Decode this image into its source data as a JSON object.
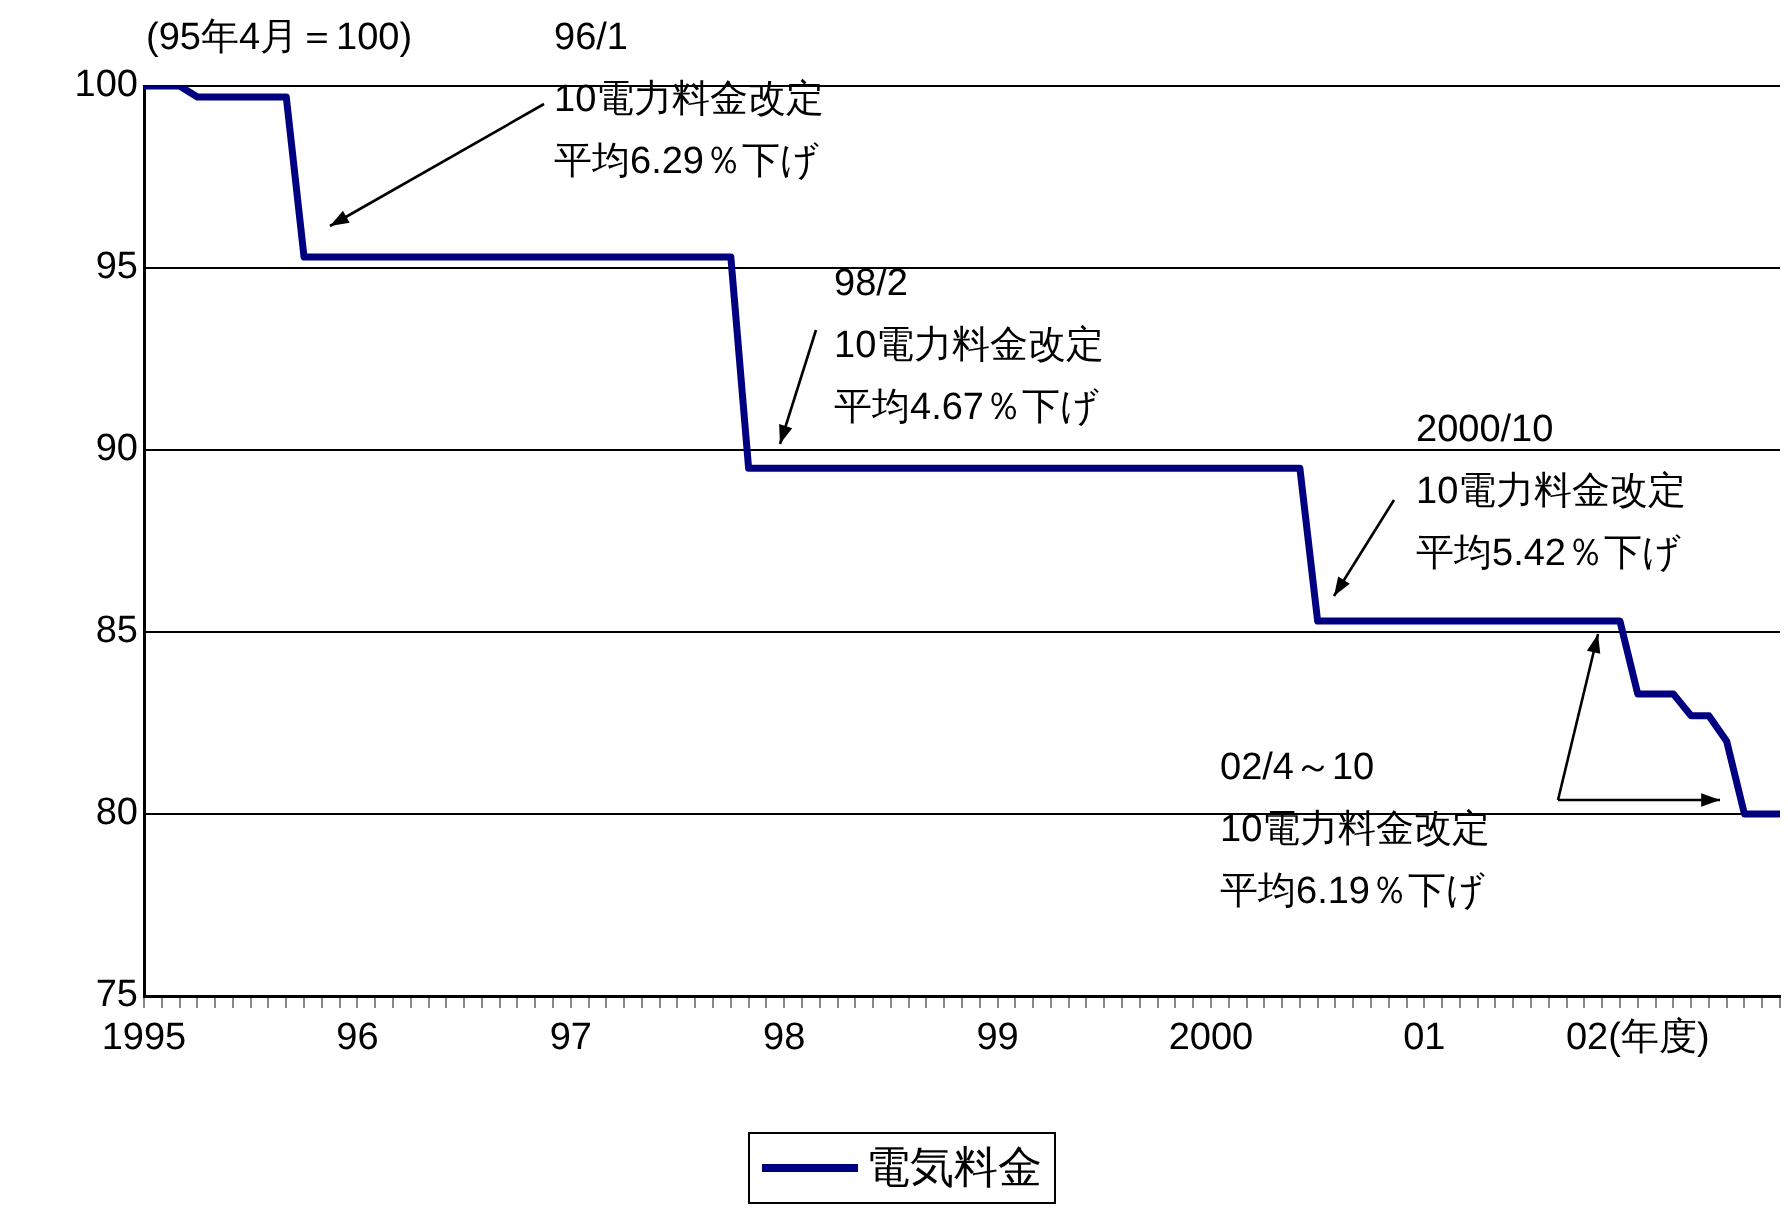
{
  "chart_data": {
    "type": "line",
    "categories": [
      "1995",
      null,
      null,
      null,
      null,
      null,
      null,
      null,
      null,
      null,
      null,
      null,
      "96",
      null,
      null,
      null,
      null,
      null,
      null,
      null,
      null,
      null,
      null,
      null,
      "97",
      null,
      null,
      null,
      null,
      null,
      null,
      null,
      null,
      null,
      null,
      null,
      "98",
      null,
      null,
      null,
      null,
      null,
      null,
      null,
      null,
      null,
      null,
      null,
      "99",
      null,
      null,
      null,
      null,
      null,
      null,
      null,
      null,
      null,
      null,
      null,
      "2000",
      null,
      null,
      null,
      null,
      null,
      null,
      null,
      null,
      null,
      null,
      null,
      "01",
      null,
      null,
      null,
      null,
      null,
      null,
      null,
      null,
      null,
      null,
      null,
      "02(年度)",
      null,
      null,
      null,
      null,
      null,
      null,
      null,
      null
    ],
    "series": [
      {
        "name": "電気料金",
        "color": "#000080",
        "values": [
          100,
          100,
          100,
          99.7,
          99.7,
          99.7,
          99.7,
          99.7,
          99.7,
          95.3,
          95.3,
          95.3,
          95.3,
          95.3,
          95.3,
          95.3,
          95.3,
          95.3,
          95.3,
          95.3,
          95.3,
          95.3,
          95.3,
          95.3,
          95.3,
          95.3,
          95.3,
          95.3,
          95.3,
          95.3,
          95.3,
          95.3,
          95.3,
          95.3,
          89.5,
          89.5,
          89.5,
          89.5,
          89.5,
          89.5,
          89.5,
          89.5,
          89.5,
          89.5,
          89.5,
          89.5,
          89.5,
          89.5,
          89.5,
          89.5,
          89.5,
          89.5,
          89.5,
          89.5,
          89.5,
          89.5,
          89.5,
          89.5,
          89.5,
          89.5,
          89.5,
          89.5,
          89.5,
          89.5,
          89.5,
          89.5,
          85.3,
          85.3,
          85.3,
          85.3,
          85.3,
          85.3,
          85.3,
          85.3,
          85.3,
          85.3,
          85.3,
          85.3,
          85.3,
          85.3,
          85.3,
          85.3,
          85.3,
          85.3,
          83.3,
          83.3,
          83.3,
          82.7,
          82.7,
          82.0,
          80.0,
          80.0,
          80.0
        ]
      }
    ],
    "ylim": [
      75,
      100
    ],
    "yticks": [
      75,
      80,
      85,
      90,
      95,
      100
    ],
    "grid": "y",
    "legend": "bottom",
    "marker": "none",
    "line_style": "solid",
    "annotations": [
      "(95年4月＝100)",
      "96/1",
      "10電力料金改定",
      "平均6.29％下げ",
      "98/2",
      "10電力料金改定",
      "平均4.67％下げ",
      "2000/10",
      "10電力料金改定",
      "平均5.42％下げ",
      "02/4～10",
      "10電力料金改定",
      "平均6.19％下げ"
    ]
  }
}
